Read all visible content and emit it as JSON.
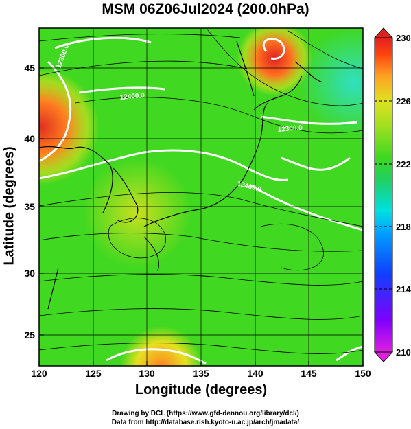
{
  "title": "MSM 06Z06Jul2024 (200.0hPa)",
  "x_axis": {
    "label": "Longitude (degrees)",
    "range": [
      120,
      150
    ],
    "ticks": [
      "120",
      "125",
      "130",
      "135",
      "140",
      "145",
      "150"
    ]
  },
  "y_axis": {
    "label": "Latitude  (degrees)",
    "range": [
      22.5,
      48
    ],
    "ticks": [
      "25",
      "30",
      "35",
      "40",
      "45"
    ]
  },
  "colorbar": {
    "range": [
      210,
      230
    ],
    "ticks": [
      "230",
      "226",
      "222",
      "218",
      "214",
      "210"
    ],
    "colors": [
      "#e020e0",
      "#8000ff",
      "#1040ff",
      "#00a0ff",
      "#00e0e0",
      "#20d060",
      "#40d820",
      "#a0e020",
      "#e0e020",
      "#ffa020",
      "#ff4010",
      "#e02020"
    ]
  },
  "contour_labels": [
    "12300.0",
    "12400.0",
    "12300.0",
    "12400.0",
    "12300.0"
  ],
  "credits": {
    "line1": "Drawing by DCL (https://www.gfd-dennou.org/library/dcl/)",
    "line2": "Data from http://database.rish.kyoto-u.ac.jp/arch/jmadata/"
  }
}
